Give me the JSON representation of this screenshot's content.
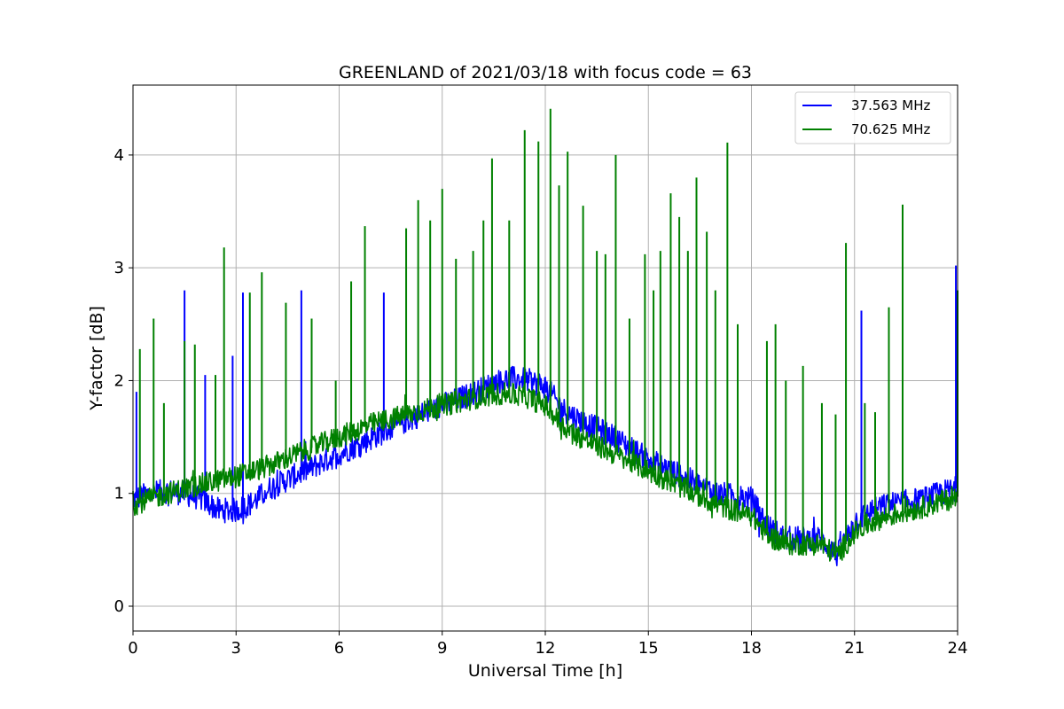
{
  "chart_data": {
    "type": "line",
    "title": "GREENLAND of 2021/03/18 with focus code = 63",
    "xlabel": "Universal Time [h]",
    "ylabel": "Y-factor [dB]",
    "xlim": [
      0,
      24
    ],
    "ylim": [
      -0.22,
      4.62
    ],
    "xticks": [
      0,
      3,
      6,
      9,
      12,
      15,
      18,
      21,
      24
    ],
    "yticks": [
      0,
      1,
      2,
      3,
      4
    ],
    "grid": true,
    "legend": "top-right",
    "series": [
      {
        "name": "37.563 MHz",
        "color": "#0000ff",
        "baseline": {
          "x": [
            0,
            0.5,
            1.0,
            1.5,
            2.0,
            2.5,
            3.0,
            3.5,
            4.0,
            5.0,
            6.0,
            7.0,
            8.0,
            9.0,
            10.0,
            10.5,
            11.0,
            11.5,
            12.0,
            12.5,
            13.0,
            14.0,
            15.0,
            16.0,
            17.0,
            18.0,
            18.5,
            19.0,
            20.0,
            20.5,
            21.0,
            21.5,
            22.0,
            23.0,
            24.0
          ],
          "y": [
            0.95,
            1.0,
            1.02,
            1.0,
            0.95,
            0.85,
            0.85,
            0.92,
            1.05,
            1.2,
            1.35,
            1.5,
            1.65,
            1.78,
            1.9,
            1.98,
            2.02,
            2.0,
            1.95,
            1.75,
            1.65,
            1.5,
            1.3,
            1.15,
            1.0,
            0.95,
            0.7,
            0.6,
            0.6,
            0.45,
            0.75,
            0.85,
            0.9,
            0.95,
            1.05
          ]
        },
        "spikes": [
          {
            "x": 0.1,
            "y": 1.9
          },
          {
            "x": 1.5,
            "y": 2.8
          },
          {
            "x": 2.1,
            "y": 2.05
          },
          {
            "x": 2.9,
            "y": 2.22
          },
          {
            "x": 3.2,
            "y": 2.78
          },
          {
            "x": 4.9,
            "y": 2.8
          },
          {
            "x": 7.3,
            "y": 2.78
          },
          {
            "x": 21.2,
            "y": 2.62
          },
          {
            "x": 23.95,
            "y": 3.02
          }
        ]
      },
      {
        "name": "70.625 MHz",
        "color": "#008000",
        "baseline": {
          "x": [
            0,
            1.0,
            2.0,
            3.0,
            4.0,
            5.0,
            6.0,
            7.0,
            8.0,
            9.0,
            10.0,
            10.5,
            11.0,
            11.5,
            12.0,
            12.5,
            13.0,
            14.0,
            15.0,
            16.0,
            17.0,
            18.0,
            18.5,
            19.0,
            20.0,
            20.5,
            21.0,
            21.5,
            22.0,
            23.0,
            24.0
          ],
          "y": [
            0.9,
            1.0,
            1.08,
            1.15,
            1.25,
            1.38,
            1.5,
            1.62,
            1.7,
            1.78,
            1.85,
            1.88,
            1.88,
            1.85,
            1.78,
            1.6,
            1.5,
            1.35,
            1.2,
            1.05,
            0.9,
            0.8,
            0.62,
            0.55,
            0.55,
            0.45,
            0.65,
            0.75,
            0.8,
            0.88,
            0.97
          ]
        },
        "spikes": [
          {
            "x": 0.2,
            "y": 2.28
          },
          {
            "x": 0.6,
            "y": 2.55
          },
          {
            "x": 0.9,
            "y": 1.8
          },
          {
            "x": 1.5,
            "y": 2.35
          },
          {
            "x": 1.8,
            "y": 2.32
          },
          {
            "x": 2.4,
            "y": 2.05
          },
          {
            "x": 2.65,
            "y": 3.18
          },
          {
            "x": 3.4,
            "y": 2.78
          },
          {
            "x": 3.75,
            "y": 2.96
          },
          {
            "x": 4.45,
            "y": 2.69
          },
          {
            "x": 5.2,
            "y": 2.55
          },
          {
            "x": 5.9,
            "y": 2.0
          },
          {
            "x": 6.35,
            "y": 2.88
          },
          {
            "x": 6.75,
            "y": 3.37
          },
          {
            "x": 7.95,
            "y": 3.35
          },
          {
            "x": 8.3,
            "y": 3.6
          },
          {
            "x": 8.65,
            "y": 3.42
          },
          {
            "x": 9.0,
            "y": 3.7
          },
          {
            "x": 9.4,
            "y": 3.08
          },
          {
            "x": 9.9,
            "y": 3.15
          },
          {
            "x": 10.2,
            "y": 3.42
          },
          {
            "x": 10.45,
            "y": 3.97
          },
          {
            "x": 10.95,
            "y": 3.42
          },
          {
            "x": 11.4,
            "y": 4.22
          },
          {
            "x": 11.8,
            "y": 4.12
          },
          {
            "x": 12.15,
            "y": 4.41
          },
          {
            "x": 12.4,
            "y": 3.73
          },
          {
            "x": 12.65,
            "y": 4.03
          },
          {
            "x": 13.1,
            "y": 3.55
          },
          {
            "x": 13.5,
            "y": 3.15
          },
          {
            "x": 13.75,
            "y": 3.12
          },
          {
            "x": 14.05,
            "y": 4.0
          },
          {
            "x": 14.45,
            "y": 2.55
          },
          {
            "x": 14.9,
            "y": 3.12
          },
          {
            "x": 15.15,
            "y": 2.8
          },
          {
            "x": 15.35,
            "y": 3.15
          },
          {
            "x": 15.65,
            "y": 3.66
          },
          {
            "x": 15.9,
            "y": 3.45
          },
          {
            "x": 16.15,
            "y": 3.15
          },
          {
            "x": 16.4,
            "y": 3.8
          },
          {
            "x": 16.7,
            "y": 3.32
          },
          {
            "x": 16.95,
            "y": 2.8
          },
          {
            "x": 17.3,
            "y": 4.11
          },
          {
            "x": 17.6,
            "y": 2.5
          },
          {
            "x": 18.45,
            "y": 2.35
          },
          {
            "x": 18.7,
            "y": 2.5
          },
          {
            "x": 19.0,
            "y": 2.0
          },
          {
            "x": 19.5,
            "y": 2.13
          },
          {
            "x": 20.05,
            "y": 1.8
          },
          {
            "x": 20.45,
            "y": 1.7
          },
          {
            "x": 20.75,
            "y": 3.22
          },
          {
            "x": 21.3,
            "y": 1.8
          },
          {
            "x": 21.6,
            "y": 1.72
          },
          {
            "x": 22.0,
            "y": 2.65
          },
          {
            "x": 22.4,
            "y": 3.56
          },
          {
            "x": 24.0,
            "y": 2.8
          }
        ]
      }
    ]
  }
}
